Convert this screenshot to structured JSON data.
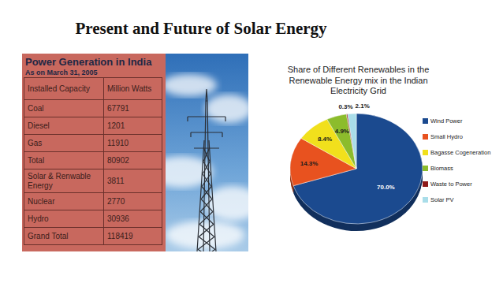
{
  "slide_title": "Present and Future of Solar Energy",
  "table": {
    "heading": "Power Generation in India",
    "subheading": "As on March 31, 2005",
    "header": [
      "Installed Capacity",
      "Million Watts"
    ],
    "rows": [
      [
        "Coal",
        67791
      ],
      [
        "Diesel",
        1201
      ],
      [
        "Gas",
        11910
      ],
      [
        "Total",
        80902
      ],
      [
        "Solar & Renwable Energy",
        3811
      ],
      [
        "Nuclear",
        2770
      ],
      [
        "Hydro",
        30936
      ],
      [
        "Grand Total",
        118419
      ]
    ]
  },
  "chart_data": {
    "type": "pie",
    "title": "Share of Different Renewables in the Renewable Energy mix in the Indian Electricity Grid",
    "categories": [
      "Wind Power",
      "Small Hydro",
      "Bagasse Cogeneration",
      "Biomass",
      "Waste to Power",
      "Solar PV"
    ],
    "values": [
      70,
      14.3,
      8.4,
      4.9,
      0.3,
      2.1
    ],
    "value_labels": [
      "70.0%",
      "14.3%",
      "8.4%",
      "4.9%",
      "0.3%",
      "2.1%"
    ],
    "colors": [
      "#1b4a8f",
      "#e8521f",
      "#f1e01c",
      "#8cbc2c",
      "#8e1b1b",
      "#a9dde9"
    ],
    "data_labels": true,
    "legend": "right"
  }
}
